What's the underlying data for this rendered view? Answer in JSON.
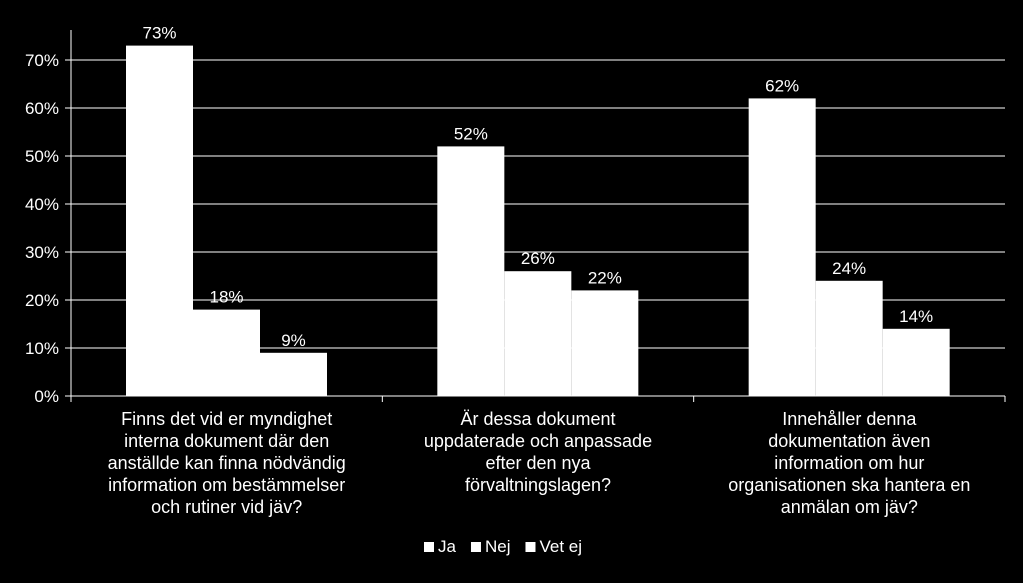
{
  "chart_data": {
    "type": "bar",
    "title": "",
    "xlabel": "",
    "ylabel": "",
    "ylim": [
      0,
      75
    ],
    "yticks": [
      "0%",
      "10%",
      "20%",
      "30%",
      "40%",
      "50%",
      "60%",
      "70%"
    ],
    "ytick_values": [
      0,
      10,
      20,
      30,
      40,
      50,
      60,
      70
    ],
    "grid": true,
    "legend_position": "bottom",
    "categories": [
      [
        "Finns det vid er myndighet",
        "interna dokument där den",
        "anställde kan finna nödvändig",
        "information om bestämmelser",
        "och rutiner vid jäv?"
      ],
      [
        "Är dessa dokument",
        "uppdaterade och anpassade",
        "efter den nya",
        "förvaltningslagen?"
      ],
      [
        "Innehåller denna",
        "dokumentation även",
        "information om hur",
        "organisationen ska hantera en",
        "anmälan om jäv?"
      ]
    ],
    "series": [
      {
        "name": "Ja",
        "values": [
          73,
          52,
          62
        ],
        "labels": [
          "73%",
          "52%",
          "62%"
        ]
      },
      {
        "name": "Nej",
        "values": [
          18,
          26,
          24
        ],
        "labels": [
          "18%",
          "26%",
          "24%"
        ]
      },
      {
        "name": "Vet ej",
        "values": [
          9,
          22,
          14
        ],
        "labels": [
          "9%",
          "22%",
          "14%"
        ]
      }
    ],
    "colors": {
      "bar": "#ffffff",
      "background": "#000000",
      "text": "#ffffff",
      "axis": "#ffffff",
      "grid": "#ffffff"
    }
  }
}
